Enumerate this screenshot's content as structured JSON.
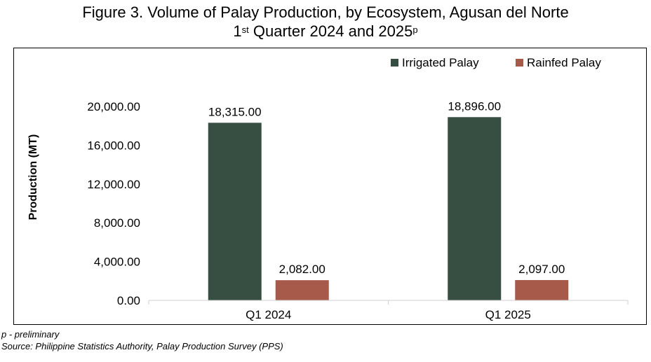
{
  "title": {
    "line1": "Figure 3. Volume of Palay Production, by Ecosystem, Agusan del Norte",
    "line2_pre": "1",
    "line2_sup1": "st",
    "line2_mid": " Quarter 2024 and 2025",
    "line2_sup2": "p"
  },
  "footnotes": {
    "preliminary": "p - preliminary",
    "source": "Source: Philippine Statistics Authority, Palay Production Survey (PPS)"
  },
  "chart_data": {
    "type": "bar",
    "title": "Figure 3. Volume of Palay Production, by Ecosystem, Agusan del Norte 1st Quarter 2024 and 2025p",
    "categories": [
      "Q1 2024",
      "Q1 2025"
    ],
    "series": [
      {
        "name": "Irrigated Palay",
        "values": [
          18315.0,
          18896.0
        ],
        "labels": [
          "18,315.00",
          "18,896.00"
        ],
        "color": "#364f42"
      },
      {
        "name": "Rainfed Palay",
        "values": [
          2082.0,
          2097.0
        ],
        "labels": [
          "2,082.00",
          "2,097.00"
        ],
        "color": "#a85a4a"
      }
    ],
    "xlabel": "",
    "ylabel": "Production (MT)",
    "ylim": [
      0,
      20000
    ],
    "yticks": [
      0,
      4000,
      8000,
      12000,
      16000,
      20000
    ],
    "ytick_labels": [
      "0.00",
      "4,000.00",
      "8,000.00",
      "12,000.00",
      "16,000.00",
      "20,000.00"
    ],
    "grid": false,
    "legend_position": "top-right"
  }
}
